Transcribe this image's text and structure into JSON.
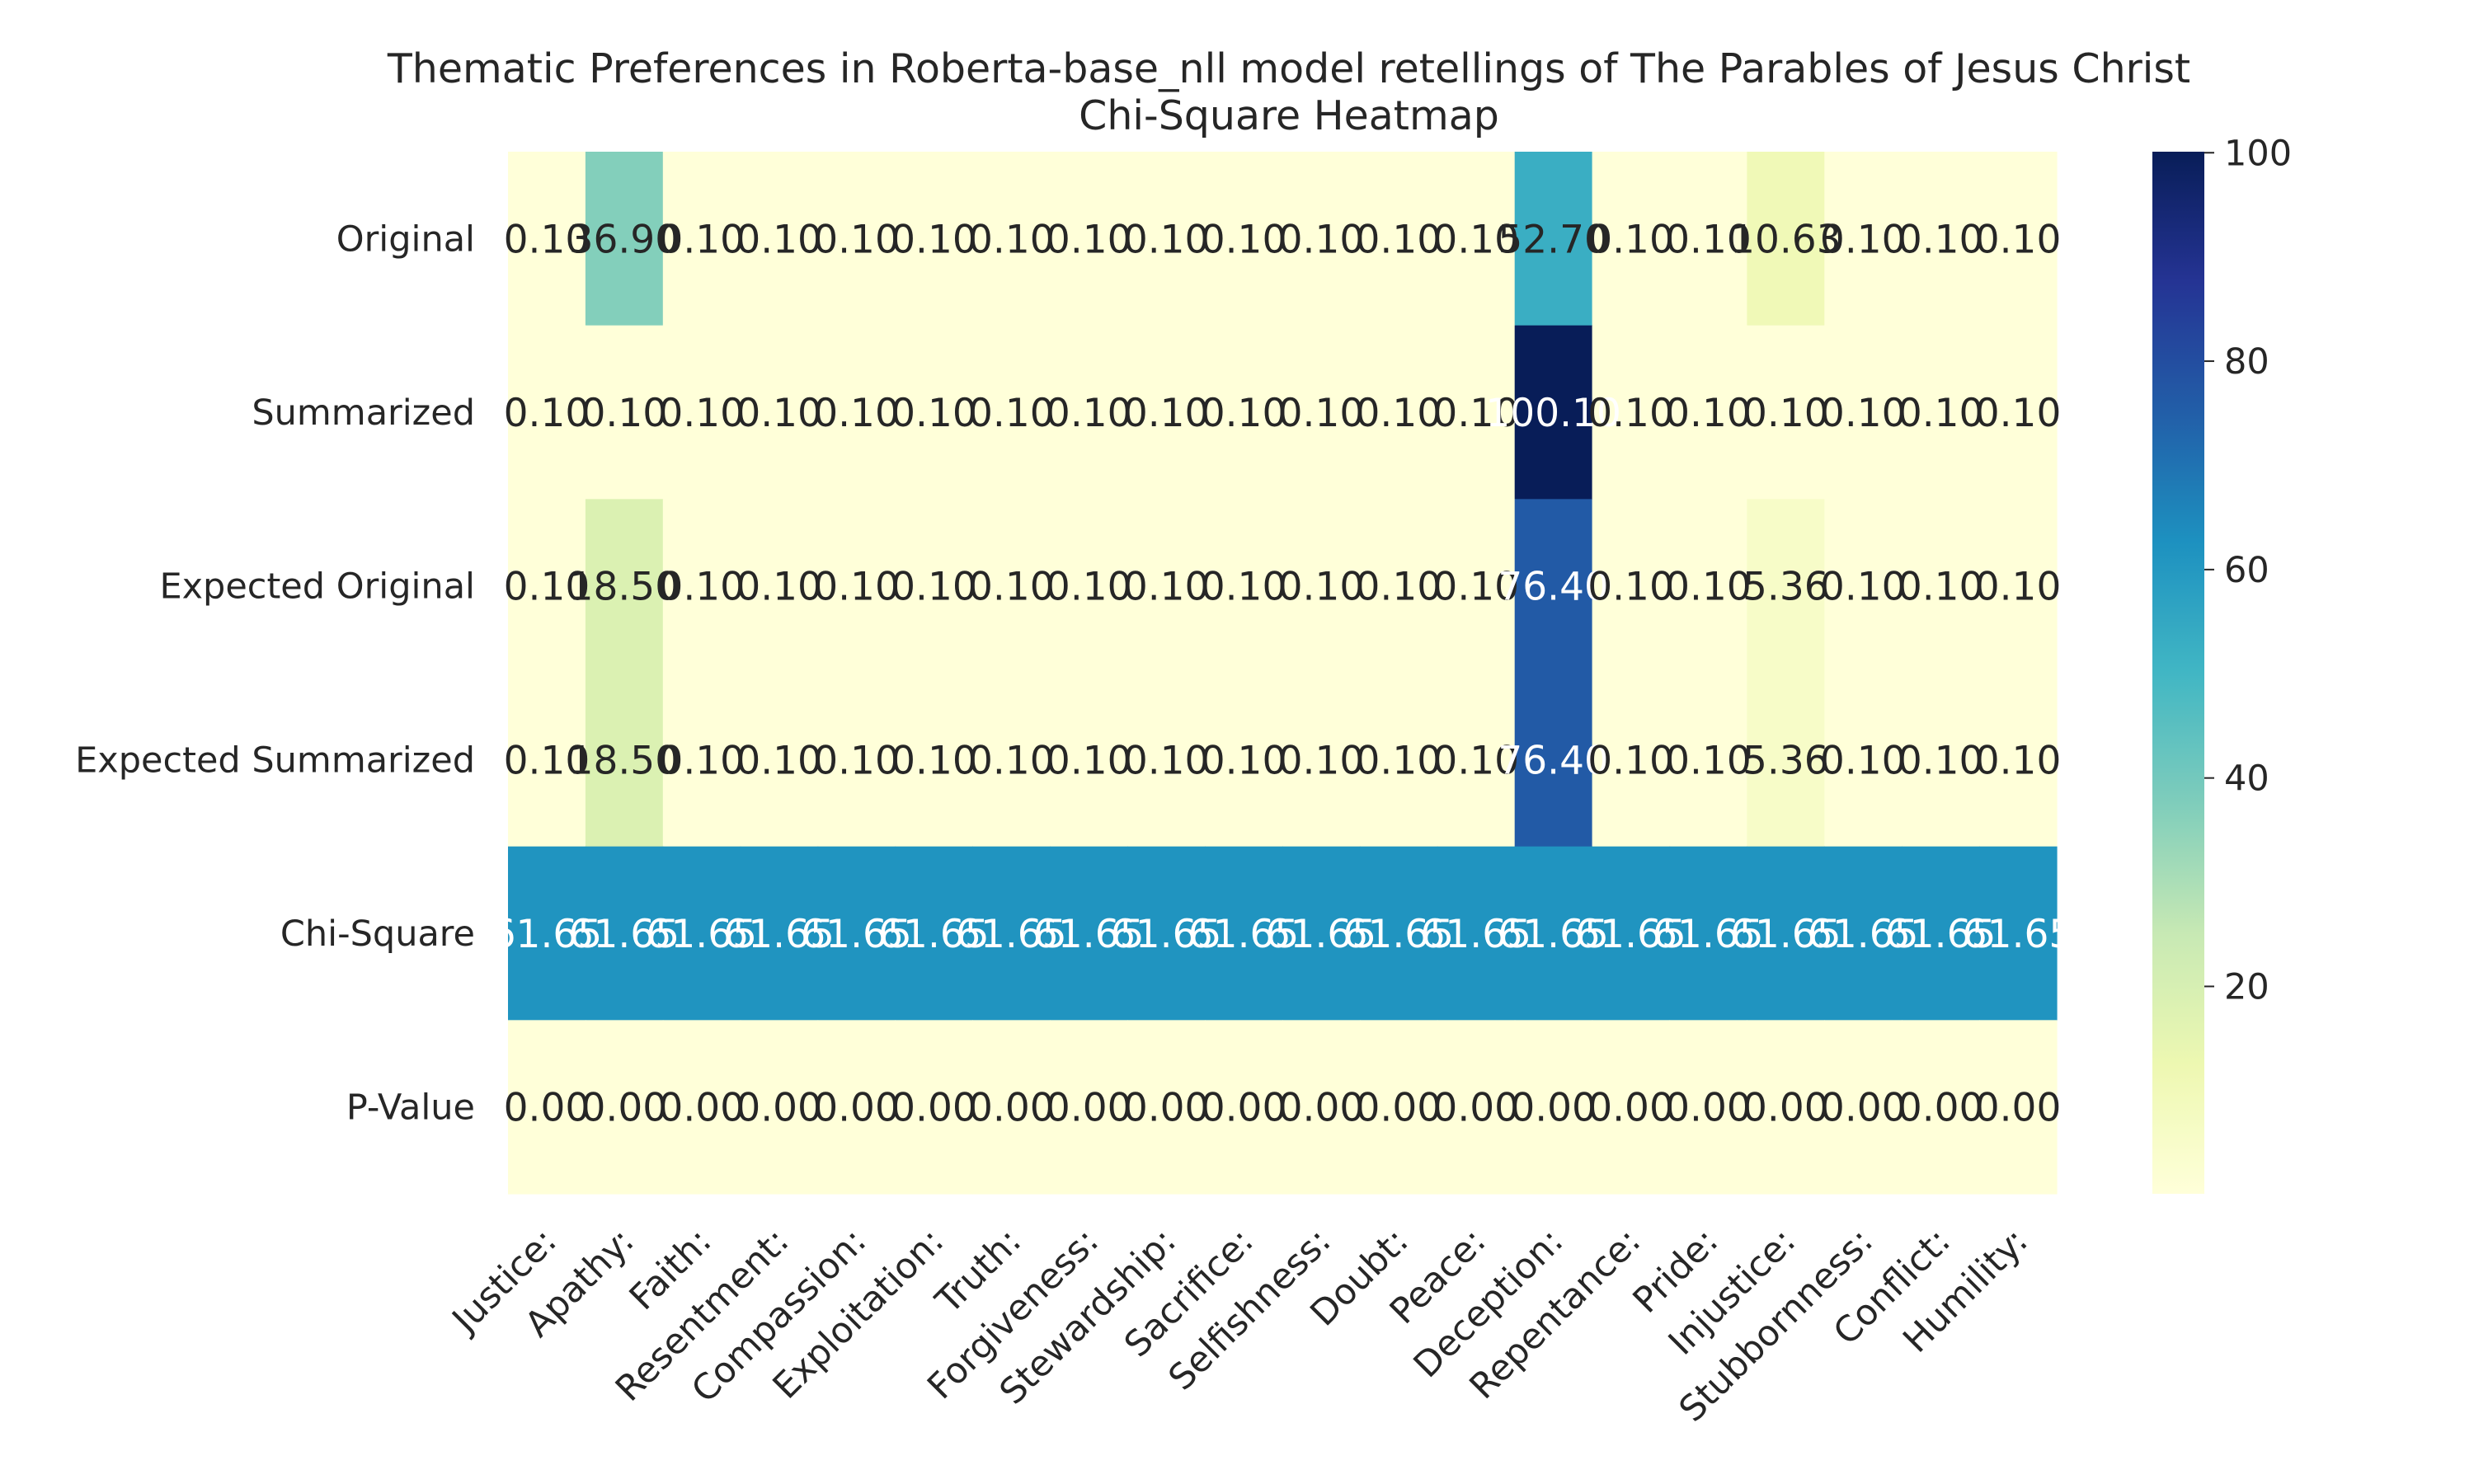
{
  "chart_data": {
    "type": "heatmap",
    "title": "Thematic Preferences in Roberta-base_nll model retellings of The Parables of Jesus Christ",
    "subtitle": "Chi-Square Heatmap",
    "xlabel": "",
    "ylabel": "",
    "columns": [
      "Justice:",
      "Apathy:",
      "Faith:",
      "Resentment:",
      "Compassion:",
      "Exploitation:",
      "Truth:",
      "Forgiveness:",
      "Stewardship:",
      "Sacrifice:",
      "Selfishness:",
      "Doubt:",
      "Peace:",
      "Deception:",
      "Repentance:",
      "Pride:",
      "Injustice:",
      "Stubbornness:",
      "Conflict:",
      "Humility:"
    ],
    "rows": [
      "Original",
      "Summarized",
      "Expected Original",
      "Expected Summarized",
      "Chi-Square",
      "P-Value"
    ],
    "values": [
      [
        0.1,
        36.9,
        0.1,
        0.1,
        0.1,
        0.1,
        0.1,
        0.1,
        0.1,
        0.1,
        0.1,
        0.1,
        0.1,
        52.7,
        0.1,
        0.1,
        10.63,
        0.1,
        0.1,
        0.1
      ],
      [
        0.1,
        0.1,
        0.1,
        0.1,
        0.1,
        0.1,
        0.1,
        0.1,
        0.1,
        0.1,
        0.1,
        0.1,
        0.1,
        100.1,
        0.1,
        0.1,
        0.1,
        0.1,
        0.1,
        0.1
      ],
      [
        0.1,
        18.5,
        0.1,
        0.1,
        0.1,
        0.1,
        0.1,
        0.1,
        0.1,
        0.1,
        0.1,
        0.1,
        0.1,
        76.4,
        0.1,
        0.1,
        5.36,
        0.1,
        0.1,
        0.1
      ],
      [
        0.1,
        18.5,
        0.1,
        0.1,
        0.1,
        0.1,
        0.1,
        0.1,
        0.1,
        0.1,
        0.1,
        0.1,
        0.1,
        76.4,
        0.1,
        0.1,
        5.36,
        0.1,
        0.1,
        0.1
      ],
      [
        61.65,
        61.65,
        61.65,
        61.65,
        61.65,
        61.65,
        61.65,
        61.65,
        61.65,
        61.65,
        61.65,
        61.65,
        61.65,
        61.65,
        61.65,
        61.65,
        61.65,
        61.65,
        61.65,
        61.65
      ],
      [
        0.0,
        0.0,
        0.0,
        0.0,
        0.0,
        0.0,
        0.0,
        0.0,
        0.0,
        0.0,
        0.0,
        0.0,
        0.0,
        0.0,
        0.0,
        0.0,
        0.0,
        0.0,
        0.0,
        0.0
      ]
    ],
    "value_range": [
      0.1,
      100.1
    ],
    "colormap": "YlGnBu",
    "colorbar": {
      "ticks": [
        20,
        40,
        60,
        80,
        100
      ],
      "placement": "right"
    },
    "grid": false
  }
}
